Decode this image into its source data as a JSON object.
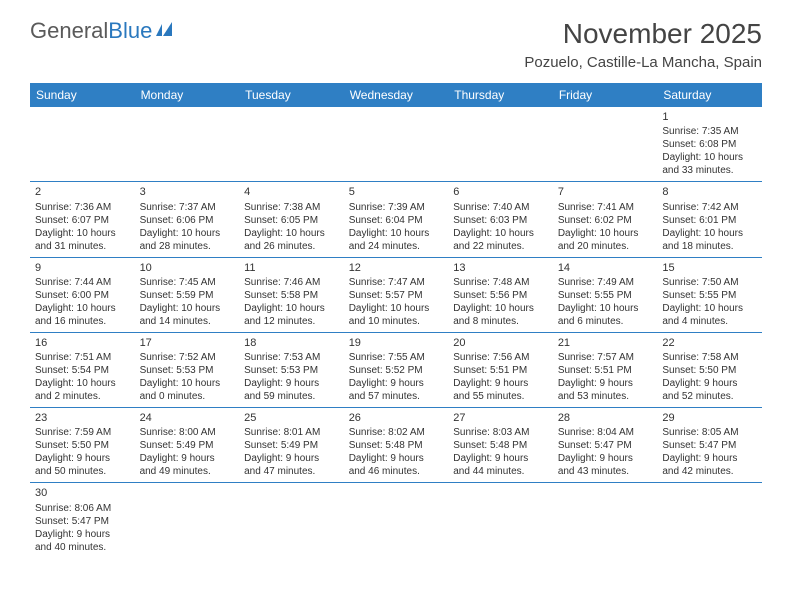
{
  "logo": {
    "word1": "General",
    "word2": "Blue"
  },
  "title": "November 2025",
  "location": "Pozuelo, Castille-La Mancha, Spain",
  "colors": {
    "header_bg": "#2f7fc4",
    "header_text": "#ffffff",
    "border": "#2f7fc4",
    "logo_gray": "#5a5a5a",
    "logo_blue": "#2a78be",
    "text": "#333333"
  },
  "weekdays": [
    "Sunday",
    "Monday",
    "Tuesday",
    "Wednesday",
    "Thursday",
    "Friday",
    "Saturday"
  ],
  "weeks": [
    [
      null,
      null,
      null,
      null,
      null,
      null,
      {
        "d": "1",
        "sr": "Sunrise: 7:35 AM",
        "ss": "Sunset: 6:08 PM",
        "dl1": "Daylight: 10 hours",
        "dl2": "and 33 minutes."
      }
    ],
    [
      {
        "d": "2",
        "sr": "Sunrise: 7:36 AM",
        "ss": "Sunset: 6:07 PM",
        "dl1": "Daylight: 10 hours",
        "dl2": "and 31 minutes."
      },
      {
        "d": "3",
        "sr": "Sunrise: 7:37 AM",
        "ss": "Sunset: 6:06 PM",
        "dl1": "Daylight: 10 hours",
        "dl2": "and 28 minutes."
      },
      {
        "d": "4",
        "sr": "Sunrise: 7:38 AM",
        "ss": "Sunset: 6:05 PM",
        "dl1": "Daylight: 10 hours",
        "dl2": "and 26 minutes."
      },
      {
        "d": "5",
        "sr": "Sunrise: 7:39 AM",
        "ss": "Sunset: 6:04 PM",
        "dl1": "Daylight: 10 hours",
        "dl2": "and 24 minutes."
      },
      {
        "d": "6",
        "sr": "Sunrise: 7:40 AM",
        "ss": "Sunset: 6:03 PM",
        "dl1": "Daylight: 10 hours",
        "dl2": "and 22 minutes."
      },
      {
        "d": "7",
        "sr": "Sunrise: 7:41 AM",
        "ss": "Sunset: 6:02 PM",
        "dl1": "Daylight: 10 hours",
        "dl2": "and 20 minutes."
      },
      {
        "d": "8",
        "sr": "Sunrise: 7:42 AM",
        "ss": "Sunset: 6:01 PM",
        "dl1": "Daylight: 10 hours",
        "dl2": "and 18 minutes."
      }
    ],
    [
      {
        "d": "9",
        "sr": "Sunrise: 7:44 AM",
        "ss": "Sunset: 6:00 PM",
        "dl1": "Daylight: 10 hours",
        "dl2": "and 16 minutes."
      },
      {
        "d": "10",
        "sr": "Sunrise: 7:45 AM",
        "ss": "Sunset: 5:59 PM",
        "dl1": "Daylight: 10 hours",
        "dl2": "and 14 minutes."
      },
      {
        "d": "11",
        "sr": "Sunrise: 7:46 AM",
        "ss": "Sunset: 5:58 PM",
        "dl1": "Daylight: 10 hours",
        "dl2": "and 12 minutes."
      },
      {
        "d": "12",
        "sr": "Sunrise: 7:47 AM",
        "ss": "Sunset: 5:57 PM",
        "dl1": "Daylight: 10 hours",
        "dl2": "and 10 minutes."
      },
      {
        "d": "13",
        "sr": "Sunrise: 7:48 AM",
        "ss": "Sunset: 5:56 PM",
        "dl1": "Daylight: 10 hours",
        "dl2": "and 8 minutes."
      },
      {
        "d": "14",
        "sr": "Sunrise: 7:49 AM",
        "ss": "Sunset: 5:55 PM",
        "dl1": "Daylight: 10 hours",
        "dl2": "and 6 minutes."
      },
      {
        "d": "15",
        "sr": "Sunrise: 7:50 AM",
        "ss": "Sunset: 5:55 PM",
        "dl1": "Daylight: 10 hours",
        "dl2": "and 4 minutes."
      }
    ],
    [
      {
        "d": "16",
        "sr": "Sunrise: 7:51 AM",
        "ss": "Sunset: 5:54 PM",
        "dl1": "Daylight: 10 hours",
        "dl2": "and 2 minutes."
      },
      {
        "d": "17",
        "sr": "Sunrise: 7:52 AM",
        "ss": "Sunset: 5:53 PM",
        "dl1": "Daylight: 10 hours",
        "dl2": "and 0 minutes."
      },
      {
        "d": "18",
        "sr": "Sunrise: 7:53 AM",
        "ss": "Sunset: 5:53 PM",
        "dl1": "Daylight: 9 hours",
        "dl2": "and 59 minutes."
      },
      {
        "d": "19",
        "sr": "Sunrise: 7:55 AM",
        "ss": "Sunset: 5:52 PM",
        "dl1": "Daylight: 9 hours",
        "dl2": "and 57 minutes."
      },
      {
        "d": "20",
        "sr": "Sunrise: 7:56 AM",
        "ss": "Sunset: 5:51 PM",
        "dl1": "Daylight: 9 hours",
        "dl2": "and 55 minutes."
      },
      {
        "d": "21",
        "sr": "Sunrise: 7:57 AM",
        "ss": "Sunset: 5:51 PM",
        "dl1": "Daylight: 9 hours",
        "dl2": "and 53 minutes."
      },
      {
        "d": "22",
        "sr": "Sunrise: 7:58 AM",
        "ss": "Sunset: 5:50 PM",
        "dl1": "Daylight: 9 hours",
        "dl2": "and 52 minutes."
      }
    ],
    [
      {
        "d": "23",
        "sr": "Sunrise: 7:59 AM",
        "ss": "Sunset: 5:50 PM",
        "dl1": "Daylight: 9 hours",
        "dl2": "and 50 minutes."
      },
      {
        "d": "24",
        "sr": "Sunrise: 8:00 AM",
        "ss": "Sunset: 5:49 PM",
        "dl1": "Daylight: 9 hours",
        "dl2": "and 49 minutes."
      },
      {
        "d": "25",
        "sr": "Sunrise: 8:01 AM",
        "ss": "Sunset: 5:49 PM",
        "dl1": "Daylight: 9 hours",
        "dl2": "and 47 minutes."
      },
      {
        "d": "26",
        "sr": "Sunrise: 8:02 AM",
        "ss": "Sunset: 5:48 PM",
        "dl1": "Daylight: 9 hours",
        "dl2": "and 46 minutes."
      },
      {
        "d": "27",
        "sr": "Sunrise: 8:03 AM",
        "ss": "Sunset: 5:48 PM",
        "dl1": "Daylight: 9 hours",
        "dl2": "and 44 minutes."
      },
      {
        "d": "28",
        "sr": "Sunrise: 8:04 AM",
        "ss": "Sunset: 5:47 PM",
        "dl1": "Daylight: 9 hours",
        "dl2": "and 43 minutes."
      },
      {
        "d": "29",
        "sr": "Sunrise: 8:05 AM",
        "ss": "Sunset: 5:47 PM",
        "dl1": "Daylight: 9 hours",
        "dl2": "and 42 minutes."
      }
    ],
    [
      {
        "d": "30",
        "sr": "Sunrise: 8:06 AM",
        "ss": "Sunset: 5:47 PM",
        "dl1": "Daylight: 9 hours",
        "dl2": "and 40 minutes."
      },
      null,
      null,
      null,
      null,
      null,
      null
    ]
  ]
}
